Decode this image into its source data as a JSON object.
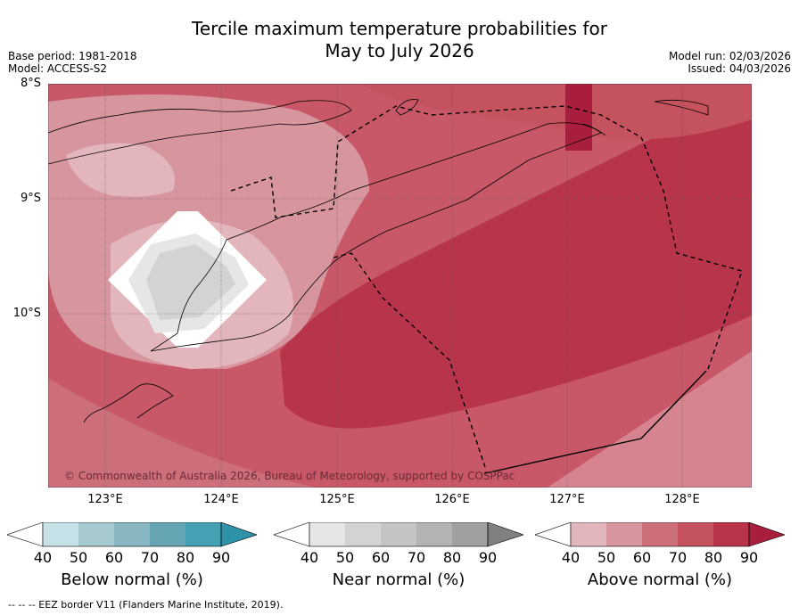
{
  "title_line1": "Tercile maximum temperature probabilities for",
  "title_line2": "May to July 2026",
  "meta": {
    "base_period": "Base period: 1981-2018",
    "model": "Model: ACCESS-S2",
    "model_run": "Model run: 02/03/2026",
    "issued": "Issued: 04/03/2026"
  },
  "axes": {
    "lat_labels": [
      "8°S",
      "9°S",
      "10°S"
    ],
    "lon_labels": [
      "123°E",
      "124°E",
      "125°E",
      "126°E",
      "127°E",
      "128°E"
    ]
  },
  "copyright": "© Commonwealth of Australia 2026, Bureau of Meteorology, supported by COSPPac",
  "colorbars": [
    {
      "label": "Below normal (%)",
      "ticks": [
        "40",
        "50",
        "60",
        "70",
        "80",
        "90"
      ],
      "colors": [
        "#c7e1e8",
        "#a7c9d0",
        "#89b7c1",
        "#66a5b3",
        "#44a0b2",
        "#2e93a8"
      ]
    },
    {
      "label": "Near normal (%)",
      "ticks": [
        "40",
        "50",
        "60",
        "70",
        "80",
        "90"
      ],
      "colors": [
        "#e6e6e6",
        "#d3d3d3",
        "#c4c4c4",
        "#b3b3b3",
        "#a0a0a0",
        "#808080"
      ]
    },
    {
      "label": "Above normal (%)",
      "ticks": [
        "40",
        "50",
        "60",
        "70",
        "80",
        "90"
      ],
      "colors": [
        "#e3b6bd",
        "#d7959e",
        "#cc6f7b",
        "#c4525f",
        "#b8344b",
        "#a81e3c"
      ]
    }
  ],
  "footnote": "--  --  -- EEZ border V11 (Flanders Marine Institute, 2019)."
}
